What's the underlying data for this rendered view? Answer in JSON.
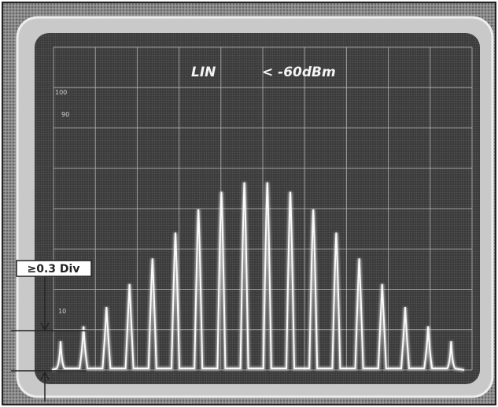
{
  "screen": {
    "mode": "LIN",
    "reference": "< -60dBm",
    "scale_labels": [
      "100",
      "90",
      "10"
    ]
  },
  "annotation": "≥0.3 Div"
}
